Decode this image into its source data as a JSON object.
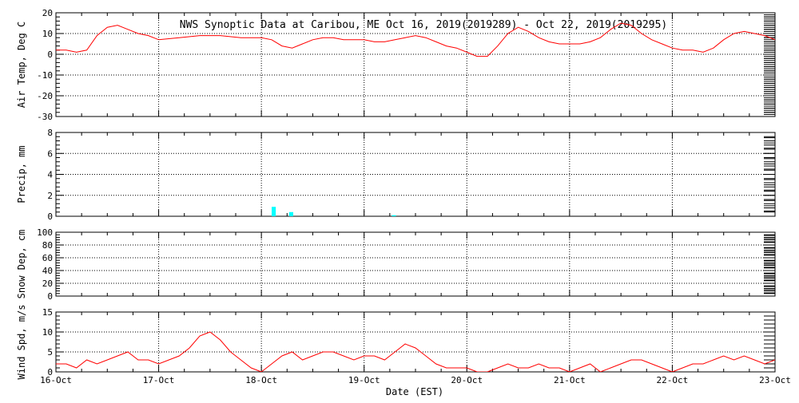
{
  "title": "NWS Synoptic Data at Caribou, ME   Oct 16, 2019(2019289) - Oct 22, 2019(2019295)",
  "xlabel": "Date (EST)",
  "x_tick_labels": [
    "16-Oct",
    "17-Oct",
    "18-Oct",
    "19-Oct",
    "20-Oct",
    "21-Oct",
    "22-Oct",
    "23-Oct"
  ],
  "colors": {
    "temp_line": "#ff0000",
    "precip_bar": "#00ffff",
    "wind_line": "#ff0000",
    "axis": "#000000",
    "grid": "#000000"
  },
  "chart_data": [
    {
      "type": "line",
      "name": "air-temp",
      "ylabel": "Air Temp, Deg C",
      "ylim": [
        -30,
        20
      ],
      "yticks": [
        -30,
        -20,
        -10,
        0,
        10,
        20
      ],
      "xlim": [
        0,
        7
      ],
      "grid": true,
      "x": [
        0,
        0.1,
        0.2,
        0.3,
        0.4,
        0.5,
        0.6,
        0.7,
        0.8,
        0.9,
        1.0,
        1.2,
        1.4,
        1.6,
        1.8,
        2.0,
        2.1,
        2.2,
        2.3,
        2.4,
        2.5,
        2.6,
        2.7,
        2.8,
        2.9,
        3.0,
        3.1,
        3.2,
        3.3,
        3.4,
        3.5,
        3.6,
        3.7,
        3.8,
        3.9,
        4.0,
        4.1,
        4.2,
        4.3,
        4.4,
        4.5,
        4.6,
        4.7,
        4.8,
        4.9,
        5.0,
        5.1,
        5.2,
        5.3,
        5.4,
        5.5,
        5.6,
        5.7,
        5.8,
        5.9,
        6.0,
        6.1,
        6.2,
        6.3,
        6.4,
        6.5,
        6.6,
        6.7,
        6.8,
        6.9,
        7.0
      ],
      "y": [
        2,
        2,
        1,
        2,
        9,
        13,
        14,
        12,
        10,
        9,
        7,
        8,
        9,
        9,
        8,
        8,
        7,
        4,
        3,
        5,
        7,
        8,
        8,
        7,
        7,
        7,
        6,
        6,
        7,
        8,
        9,
        8,
        6,
        4,
        3,
        1,
        -1,
        -1,
        4,
        10,
        13,
        11,
        8,
        6,
        5,
        5,
        5,
        6,
        8,
        12,
        15,
        14,
        10,
        7,
        5,
        3,
        2,
        2,
        1,
        3,
        7,
        10,
        11,
        10,
        9,
        7
      ]
    },
    {
      "type": "bar",
      "name": "precip",
      "ylabel": "Precip, mm",
      "ylim": [
        0,
        8
      ],
      "yticks": [
        0,
        2,
        4,
        6,
        8
      ],
      "xlim": [
        0,
        7
      ],
      "grid": true,
      "x": [
        2.1,
        2.27,
        3.27
      ],
      "values": [
        0.9,
        0.4,
        0.1
      ],
      "bar_width_days": 0.04
    },
    {
      "type": "line",
      "name": "snow-depth",
      "ylabel": "Snow Dep, cm",
      "ylim": [
        0,
        100
      ],
      "yticks": [
        0,
        20,
        40,
        60,
        80,
        100
      ],
      "xlim": [
        0,
        7
      ],
      "grid": true,
      "x": [],
      "y": []
    },
    {
      "type": "line",
      "name": "wind-speed",
      "ylabel": "Wind Spd, m/s",
      "ylim": [
        0,
        15
      ],
      "yticks": [
        0,
        5,
        10,
        15
      ],
      "xlim": [
        0,
        7
      ],
      "grid": true,
      "x": [
        0,
        0.1,
        0.2,
        0.3,
        0.4,
        0.5,
        0.6,
        0.7,
        0.8,
        0.9,
        1.0,
        1.1,
        1.2,
        1.3,
        1.4,
        1.5,
        1.6,
        1.7,
        1.8,
        1.9,
        2.0,
        2.1,
        2.2,
        2.3,
        2.4,
        2.5,
        2.6,
        2.7,
        2.8,
        2.9,
        3.0,
        3.1,
        3.2,
        3.3,
        3.4,
        3.5,
        3.6,
        3.7,
        3.8,
        3.9,
        4.0,
        4.1,
        4.2,
        4.3,
        4.4,
        4.5,
        4.6,
        4.7,
        4.8,
        4.9,
        5.0,
        5.1,
        5.2,
        5.3,
        5.4,
        5.5,
        5.6,
        5.7,
        5.8,
        5.9,
        6.0,
        6.1,
        6.2,
        6.3,
        6.4,
        6.5,
        6.6,
        6.7,
        6.8,
        6.9,
        7.0
      ],
      "y": [
        2,
        2,
        1,
        3,
        2,
        3,
        4,
        5,
        3,
        3,
        2,
        3,
        4,
        6,
        9,
        10,
        8,
        5,
        3,
        1,
        0,
        2,
        4,
        5,
        3,
        4,
        5,
        5,
        4,
        3,
        4,
        4,
        3,
        5,
        7,
        6,
        4,
        2,
        1,
        1,
        1,
        0,
        0,
        1,
        2,
        1,
        1,
        2,
        1,
        1,
        0,
        1,
        2,
        0,
        1,
        2,
        3,
        3,
        2,
        1,
        0,
        1,
        2,
        2,
        3,
        4,
        3,
        4,
        3,
        2,
        3
      ]
    }
  ]
}
